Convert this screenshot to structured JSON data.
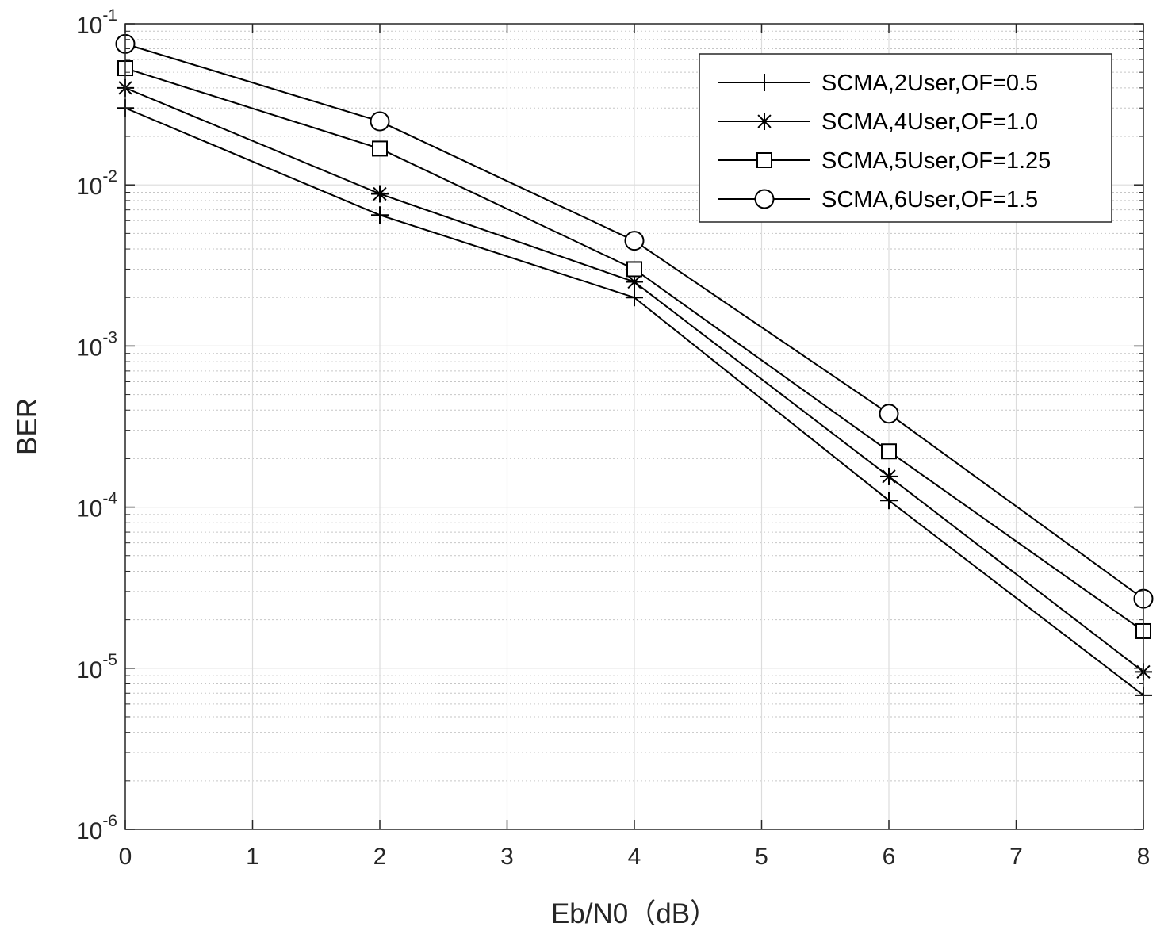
{
  "chart_data": {
    "type": "line",
    "title": "",
    "xlabel": "Eb/N0（dB）",
    "ylabel": "BER",
    "xlim": [
      0,
      8
    ],
    "ylim": [
      1e-06,
      0.1
    ],
    "yscale": "log",
    "grid": true,
    "minor_grid": true,
    "legend_position": "top-right",
    "x_ticks": [
      "0",
      "1",
      "2",
      "3",
      "4",
      "5",
      "6",
      "7",
      "8"
    ],
    "y_ticks": [
      {
        "base": "10",
        "exp": "-6"
      },
      {
        "base": "10",
        "exp": "-5"
      },
      {
        "base": "10",
        "exp": "-4"
      },
      {
        "base": "10",
        "exp": "-3"
      },
      {
        "base": "10",
        "exp": "-2"
      },
      {
        "base": "10",
        "exp": "-1"
      }
    ],
    "x": [
      0,
      2,
      4,
      6,
      8
    ],
    "series": [
      {
        "name": "SCMA,2User,OF=0.5",
        "marker": "plus",
        "color": "#000000",
        "values": [
          0.03,
          0.0065,
          0.002,
          0.00011,
          6.8e-06
        ]
      },
      {
        "name": "SCMA,4User,OF=1.0",
        "marker": "asterisk",
        "color": "#000000",
        "values": [
          0.04,
          0.0088,
          0.0025,
          0.000155,
          9.5e-06
        ]
      },
      {
        "name": "SCMA,5User,OF=1.25",
        "marker": "square",
        "color": "#000000",
        "values": [
          0.053,
          0.0168,
          0.003,
          0.000222,
          1.7e-05
        ]
      },
      {
        "name": "SCMA,6User,OF=1.5",
        "marker": "circle",
        "color": "#000000",
        "values": [
          0.075,
          0.0248,
          0.0045,
          0.00038,
          2.7e-05
        ]
      }
    ]
  }
}
